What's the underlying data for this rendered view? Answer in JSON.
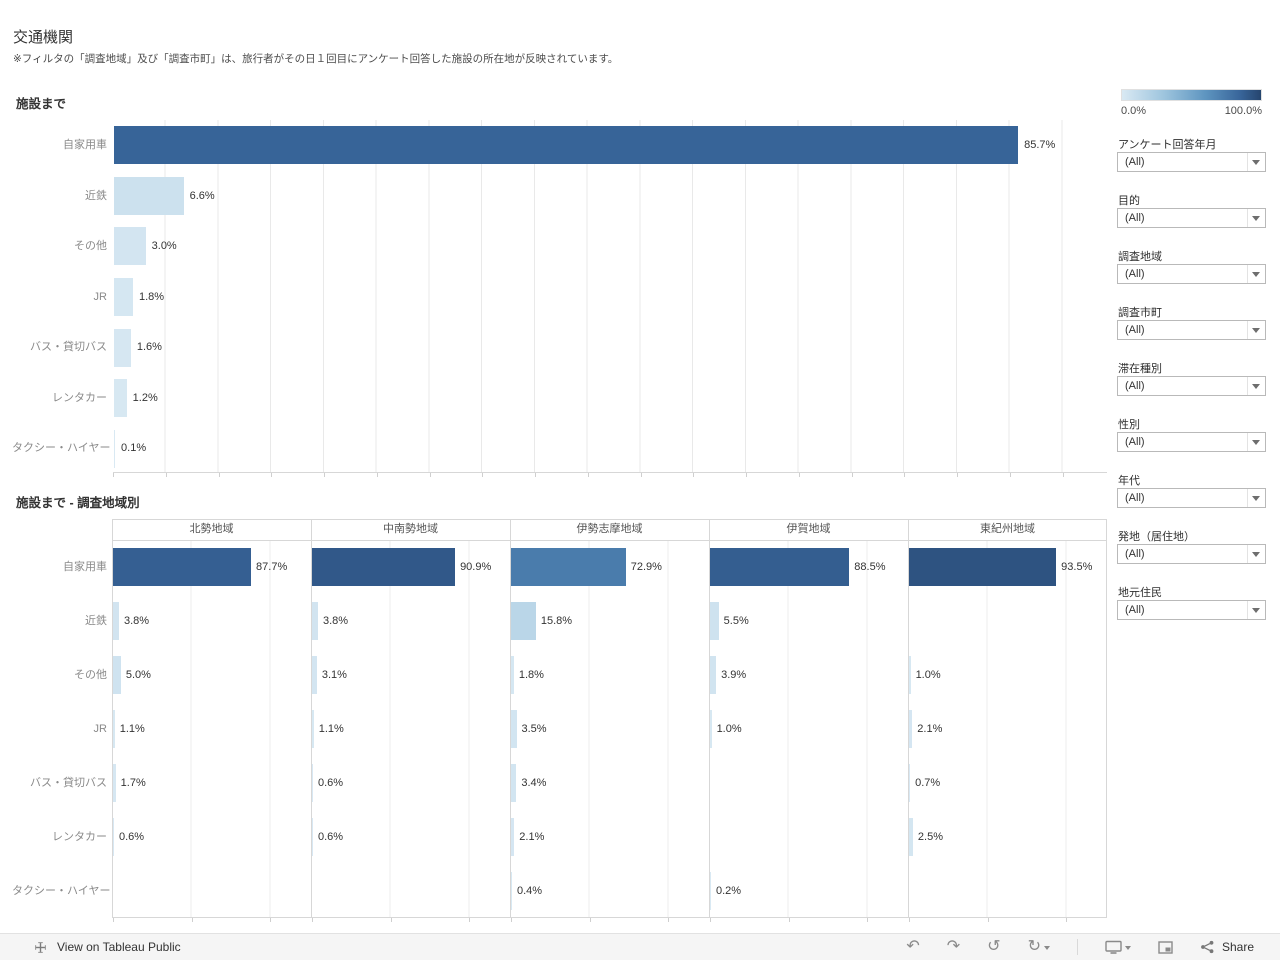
{
  "page": {
    "title": "交通機関",
    "subtitle": "※フィルタの「調査地域」及び「調査市町」は、旅行者がその日１回目にアンケート回答した施設の所在地が反映されています。"
  },
  "chart_data": [
    {
      "type": "bar",
      "title": "施設まで",
      "orientation": "horizontal",
      "value_format": "percent",
      "categories": [
        "自家用車",
        "近鉄",
        "その他",
        "JR",
        "バス・貸切バス",
        "レンタカー",
        "タクシー・ハイヤー"
      ],
      "values": [
        85.7,
        6.6,
        3.0,
        1.8,
        1.6,
        1.2,
        0.1
      ],
      "xlim": [
        0,
        94
      ],
      "gridline_step_pct": 5,
      "grid": true
    },
    {
      "type": "bar",
      "title": "施設まで - 調査地域別",
      "orientation": "horizontal",
      "value_format": "percent",
      "categories": [
        "自家用車",
        "近鉄",
        "その他",
        "JR",
        "バス・貸切バス",
        "レンタカー",
        "タクシー・ハイヤー"
      ],
      "columns": [
        "北勢地域",
        "中南勢地域",
        "伊勢志摩地域",
        "伊賀地域",
        "東紀州地域"
      ],
      "series": [
        {
          "name": "北勢地域",
          "values": [
            87.7,
            3.8,
            5.0,
            1.1,
            1.7,
            0.6,
            null
          ]
        },
        {
          "name": "中南勢地域",
          "values": [
            90.9,
            3.8,
            3.1,
            1.1,
            0.6,
            0.6,
            null
          ]
        },
        {
          "name": "伊勢志摩地域",
          "values": [
            72.9,
            15.8,
            1.8,
            3.5,
            3.4,
            2.1,
            0.4
          ]
        },
        {
          "name": "伊賀地域",
          "values": [
            88.5,
            5.5,
            3.9,
            1.0,
            null,
            null,
            0.2
          ]
        },
        {
          "name": "東紀州地域",
          "values": [
            93.5,
            null,
            1.0,
            2.1,
            0.7,
            2.5,
            null
          ]
        }
      ],
      "cell_gridline_step_pct": 50
    }
  ],
  "color_scale": {
    "min_label": "0.0%",
    "max_label": "100.0%",
    "stops": [
      {
        "pct": 0,
        "color": "#d9e9f3"
      },
      {
        "pct": 30,
        "color": "#9ec5de"
      },
      {
        "pct": 60,
        "color": "#5e95c0"
      },
      {
        "pct": 85,
        "color": "#38659a"
      },
      {
        "pct": 100,
        "color": "#26456e"
      }
    ]
  },
  "filters": [
    {
      "label": "アンケート回答年月",
      "value": "(All)"
    },
    {
      "label": "目的",
      "value": "(All)"
    },
    {
      "label": "調査地域",
      "value": "(All)"
    },
    {
      "label": "調査市町",
      "value": "(All)"
    },
    {
      "label": "滞在種別",
      "value": "(All)"
    },
    {
      "label": "性別",
      "value": "(All)"
    },
    {
      "label": "年代",
      "value": "(All)"
    },
    {
      "label": "発地（居住地）",
      "value": "(All)"
    },
    {
      "label": "地元住民",
      "value": "(All)"
    }
  ],
  "toolbar": {
    "view_label": "View on Tableau Public",
    "share_label": "Share",
    "icons": [
      "tableau-logo-icon",
      "undo-icon",
      "redo-icon",
      "revert-icon",
      "refresh-icon",
      "display-icon",
      "fullscreen-icon",
      "share-icon"
    ]
  }
}
